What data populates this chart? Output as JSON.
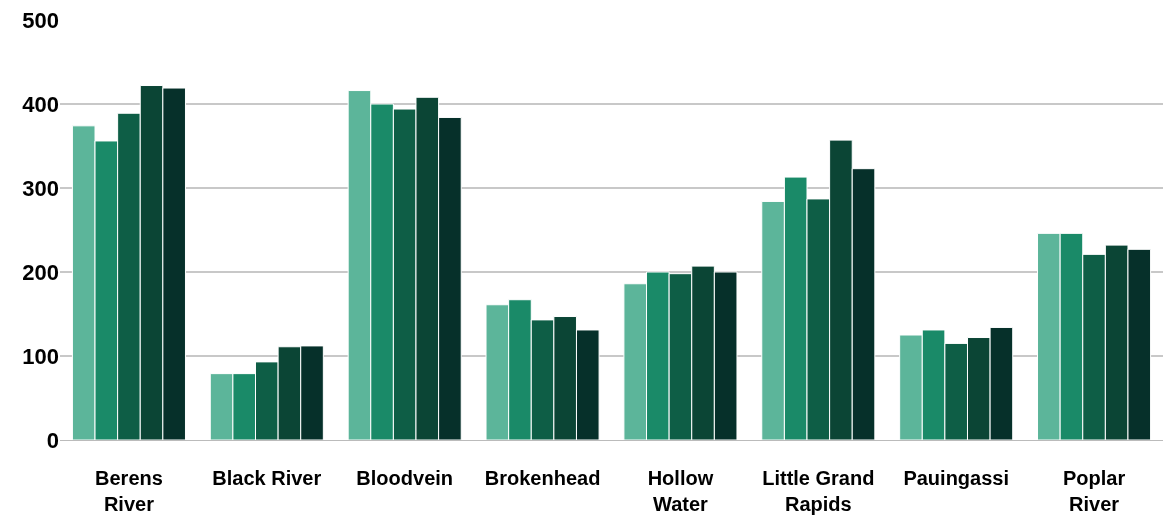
{
  "chart_data": {
    "type": "bar",
    "categories": [
      "Berens\nRiver",
      "Black River",
      "Bloodvein",
      "Brokenhead",
      "Hollow\nWater",
      "Little Grand\nRapids",
      "Pauingassi",
      "Poplar\nRiver"
    ],
    "series": [
      {
        "color": "#5cb59a",
        "values": [
          374,
          79,
          416,
          161,
          186,
          284,
          125,
          246
        ]
      },
      {
        "color": "#1a8a68",
        "values": [
          356,
          79,
          400,
          167,
          200,
          313,
          131,
          246
        ]
      },
      {
        "color": "#0e5e46",
        "values": [
          389,
          93,
          394,
          143,
          198,
          287,
          115,
          221
        ]
      },
      {
        "color": "#0b4535",
        "values": [
          422,
          111,
          408,
          147,
          207,
          357,
          122,
          232
        ]
      },
      {
        "color": "#06302a",
        "values": [
          419,
          112,
          384,
          131,
          200,
          323,
          134,
          227
        ]
      }
    ],
    "ylim": [
      0,
      500
    ],
    "yticks": [
      0,
      100,
      200,
      300,
      400,
      500
    ],
    "grid": "y"
  }
}
